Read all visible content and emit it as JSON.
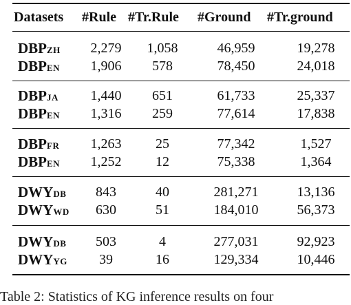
{
  "table": {
    "headers": [
      "Datasets",
      "#Rule",
      "#Tr.Rule",
      "#Ground",
      "#Tr.ground"
    ],
    "groups": [
      {
        "rows": [
          {
            "base": "DBP",
            "sub": "ZH",
            "rule": "2,279",
            "tr_rule": "1,058",
            "ground": "46,959",
            "tr_ground": "19,278"
          },
          {
            "base": "DBP",
            "sub": "EN",
            "rule": "1,906",
            "tr_rule": "578",
            "ground": "78,450",
            "tr_ground": "24,018"
          }
        ]
      },
      {
        "rows": [
          {
            "base": "DBP",
            "sub": "JA",
            "rule": "1,440",
            "tr_rule": "651",
            "ground": "61,733",
            "tr_ground": "25,337"
          },
          {
            "base": "DBP",
            "sub": "EN",
            "rule": "1,316",
            "tr_rule": "259",
            "ground": "77,614",
            "tr_ground": "17,838"
          }
        ]
      },
      {
        "rows": [
          {
            "base": "DBP",
            "sub": "FR",
            "rule": "1,263",
            "tr_rule": "25",
            "ground": "77,342",
            "tr_ground": "1,527"
          },
          {
            "base": "DBP",
            "sub": "EN",
            "rule": "1,252",
            "tr_rule": "12",
            "ground": "75,338",
            "tr_ground": "1,364"
          }
        ]
      },
      {
        "rows": [
          {
            "base": "DWY",
            "sub": "DB",
            "rule": "843",
            "tr_rule": "40",
            "ground": "281,271",
            "tr_ground": "13,136"
          },
          {
            "base": "DWY",
            "sub": "WD",
            "rule": "630",
            "tr_rule": "51",
            "ground": "184,010",
            "tr_ground": "56,373"
          }
        ]
      },
      {
        "rows": [
          {
            "base": "DWY",
            "sub": "DB",
            "rule": "503",
            "tr_rule": "4",
            "ground": "277,031",
            "tr_ground": "92,923"
          },
          {
            "base": "DWY",
            "sub": "YG",
            "rule": "39",
            "tr_rule": "16",
            "ground": "129,334",
            "tr_ground": "10,446"
          }
        ]
      }
    ]
  },
  "caption": "Table 2: Statistics of KG inference results on four"
}
